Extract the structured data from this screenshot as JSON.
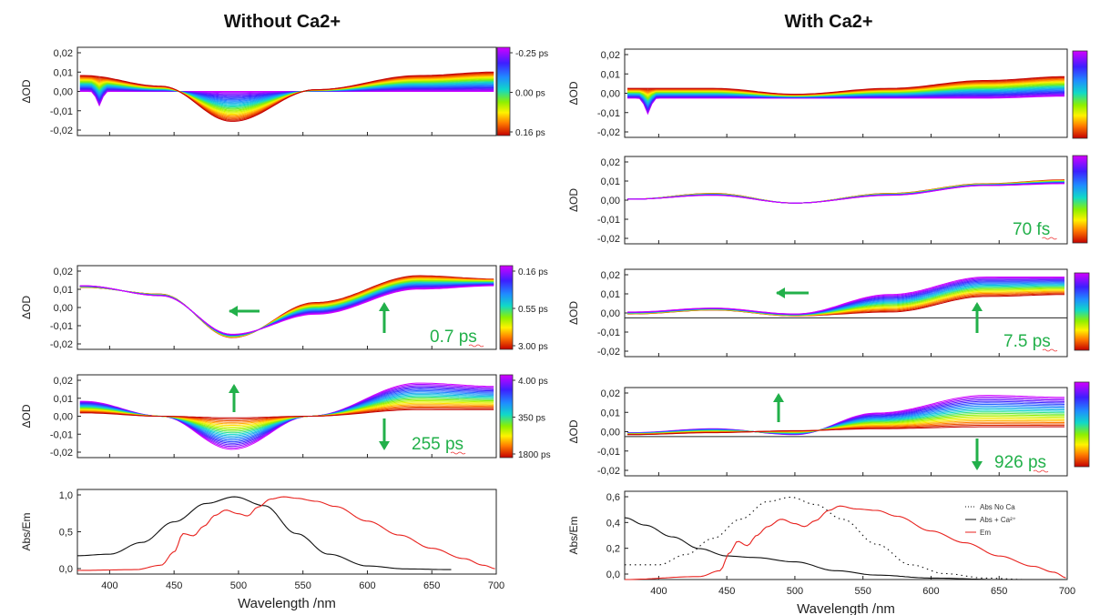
{
  "titles": {
    "left": "Without Ca2+",
    "right": "With Ca2+"
  },
  "colors": {
    "annotation": "#22b04a",
    "abs": "#111111",
    "em": "#e8221e",
    "axis": "#222222"
  },
  "chart_data": [
    {
      "id": "L1",
      "type": "line",
      "col": "left",
      "ylabel": "ΔOD",
      "yticks": [
        "0,02",
        "0,01",
        "0,00",
        "-0,01",
        "-0,02"
      ],
      "ylim": [
        -0.025,
        0.025
      ],
      "xlim": [
        375,
        700
      ],
      "colorbar": {
        "labels": [
          "-0.25 ps",
          "0.00 ps",
          "0.16 ps"
        ]
      },
      "annotation": "",
      "arrows": [],
      "series_summary": {
        "count": 30,
        "x": [
          380,
          440,
          495,
          560,
          640,
          700
        ],
        "y_first": [
          0.0,
          0.0,
          0.0,
          0.0,
          0.0,
          0.0
        ],
        "y_last": [
          0.009,
          0.003,
          -0.017,
          0.001,
          0.009,
          0.011
        ]
      }
    },
    {
      "id": "L2",
      "type": "line",
      "col": "left",
      "ylabel": "ΔOD",
      "yticks": [
        "0,02",
        "0,01",
        "0,00",
        "-0,01",
        "-0,02"
      ],
      "ylim": [
        -0.025,
        0.025
      ],
      "xlim": [
        375,
        700
      ],
      "colorbar": {
        "labels": [
          "0.16 ps",
          "0.55 ps",
          "3.00 ps"
        ]
      },
      "annotation": "0.7 ps",
      "arrows": [
        "left",
        "up"
      ],
      "series_summary": {
        "count": 22,
        "x": [
          380,
          440,
          495,
          560,
          640,
          700
        ],
        "y_first": [
          0.012,
          0.008,
          -0.018,
          0.003,
          0.019,
          0.017
        ],
        "y_last": [
          0.013,
          0.007,
          -0.016,
          -0.004,
          0.011,
          0.013
        ]
      }
    },
    {
      "id": "L3",
      "type": "line",
      "col": "left",
      "ylabel": "ΔOD",
      "yticks": [
        "0,02",
        "0,01",
        "0,00",
        "-0,01",
        "-0,02"
      ],
      "ylim": [
        -0.025,
        0.025
      ],
      "xlim": [
        375,
        700
      ],
      "colorbar": {
        "labels": [
          "4.00 ps",
          "350 ps",
          "1800 ps"
        ]
      },
      "annotation": "255 ps",
      "arrows": [
        "up",
        "down"
      ],
      "series_summary": {
        "count": 22,
        "x": [
          380,
          440,
          495,
          555,
          640,
          700
        ],
        "y_first": [
          0.009,
          0.0,
          -0.02,
          0.0,
          0.02,
          0.018
        ],
        "y_last": [
          0.002,
          0.0,
          -0.001,
          0.0,
          0.004,
          0.004
        ]
      }
    },
    {
      "id": "L4",
      "type": "line",
      "col": "left",
      "ylabel": "Abs/Em",
      "xlabel": "Wavelength  /nm",
      "yticks": [
        "1,0",
        "0,5",
        "0,0"
      ],
      "ylim": [
        -0.05,
        1.1
      ],
      "xlim": [
        375,
        700
      ],
      "xticks": [
        "400",
        "450",
        "500",
        "550",
        "600",
        "650",
        "700"
      ],
      "series": [
        {
          "kind": "abs",
          "x": [
            375,
            400,
            425,
            450,
            475,
            497,
            520,
            545,
            570,
            600,
            630,
            665
          ],
          "y": [
            0.2,
            0.22,
            0.38,
            0.66,
            0.91,
            1.0,
            0.88,
            0.5,
            0.22,
            0.06,
            0.02,
            0.01
          ]
        },
        {
          "kind": "em",
          "x": [
            375,
            420,
            440,
            450,
            457,
            465,
            473,
            482,
            490,
            500,
            507,
            515,
            525,
            535,
            545,
            560,
            575,
            600,
            625,
            650,
            675,
            690,
            700
          ],
          "y": [
            0.0,
            0.01,
            0.07,
            0.25,
            0.5,
            0.47,
            0.6,
            0.75,
            0.82,
            0.77,
            0.74,
            0.86,
            0.97,
            1.0,
            0.98,
            0.94,
            0.87,
            0.67,
            0.48,
            0.3,
            0.16,
            0.07,
            0.02
          ]
        }
      ]
    },
    {
      "id": "R1",
      "type": "line",
      "col": "right",
      "ylabel": "ΔOD",
      "yticks": [
        "0,02",
        "0,01",
        "0,00",
        "-0,01",
        "-0,02"
      ],
      "ylim": [
        -0.02,
        0.025
      ],
      "xlim": [
        375,
        700
      ],
      "colorbar": {
        "labels": []
      },
      "annotation": "",
      "arrows": [],
      "series_summary": {
        "count": 28,
        "x": [
          380,
          440,
          500,
          570,
          640,
          700
        ],
        "y_first": [
          0.0,
          0.0,
          0.0,
          0.0,
          0.0,
          0.001
        ],
        "y_last": [
          0.005,
          0.005,
          0.002,
          0.005,
          0.009,
          0.011
        ]
      }
    },
    {
      "id": "R2",
      "type": "line",
      "col": "right",
      "ylabel": "ΔOD",
      "yticks": [
        "0,02",
        "0,01",
        "0,00",
        "-0,01",
        "-0,02"
      ],
      "ylim": [
        -0.02,
        0.025
      ],
      "xlim": [
        375,
        700
      ],
      "colorbar": {
        "labels": []
      },
      "annotation": "70 fs",
      "arrows": [],
      "series_summary": {
        "count": 16,
        "x": [
          380,
          440,
          500,
          570,
          640,
          700
        ],
        "y_first": [
          0.003,
          0.006,
          0.001,
          0.006,
          0.011,
          0.013
        ],
        "y_last": [
          0.003,
          0.005,
          0.001,
          0.005,
          0.01,
          0.011
        ]
      }
    },
    {
      "id": "R3",
      "type": "line",
      "col": "right",
      "ylabel": "ΔOD",
      "yticks": [
        "0,02",
        "0,01",
        "0,00",
        "-0,01",
        "-0,02"
      ],
      "ylim": [
        -0.02,
        0.025
      ],
      "xlim": [
        375,
        700
      ],
      "colorbar": {
        "labels": []
      },
      "annotation": "7.5 ps",
      "arrows": [
        "left",
        "up"
      ],
      "series_summary": {
        "count": 20,
        "x": [
          380,
          440,
          500,
          570,
          640,
          700
        ],
        "y_first": [
          0.002,
          0.004,
          0.001,
          0.003,
          0.011,
          0.012
        ],
        "y_last": [
          0.003,
          0.005,
          0.002,
          0.012,
          0.021,
          0.021
        ]
      }
    },
    {
      "id": "R4",
      "type": "line",
      "col": "right",
      "ylabel": "ΔOD",
      "yticks": [
        "0,02",
        "0,01",
        "0,00",
        "-0,01",
        "-0,02"
      ],
      "ylim": [
        -0.02,
        0.025
      ],
      "xlim": [
        375,
        700
      ],
      "colorbar": {
        "labels": []
      },
      "annotation": "926 ps",
      "arrows": [
        "up",
        "down"
      ],
      "series_summary": {
        "count": 22,
        "x": [
          380,
          440,
          500,
          560,
          640,
          700
        ],
        "y_first": [
          0.002,
          0.004,
          0.001,
          0.012,
          0.021,
          0.02
        ],
        "y_last": [
          0.001,
          0.002,
          0.003,
          0.004,
          0.005,
          0.005
        ]
      }
    },
    {
      "id": "R5",
      "type": "line",
      "col": "right",
      "ylabel": "Abs/Em",
      "xlabel": "Wavelength  /nm",
      "yticks": [
        "0,6",
        "0,4",
        "0,2",
        "0,0"
      ],
      "ylim": [
        0,
        0.6
      ],
      "xlim": [
        375,
        700
      ],
      "xticks": [
        "400",
        "450",
        "500",
        "550",
        "600",
        "650",
        "700"
      ],
      "legend": [
        {
          "label": "Abs No Ca",
          "style": "dotted"
        },
        {
          "label": "Abs + Ca²⁺",
          "style": "solid"
        },
        {
          "label": "Em",
          "style": "red"
        }
      ],
      "series": [
        {
          "kind": "absnoca",
          "x": [
            375,
            400,
            420,
            440,
            460,
            480,
            497,
            515,
            535,
            560,
            585,
            610,
            640,
            670,
            700
          ],
          "y": [
            0.1,
            0.1,
            0.17,
            0.28,
            0.41,
            0.53,
            0.56,
            0.51,
            0.41,
            0.24,
            0.1,
            0.04,
            0.01,
            0.0,
            0.0
          ]
        },
        {
          "kind": "abs",
          "x": [
            375,
            390,
            410,
            430,
            450,
            470,
            500,
            530,
            560,
            600,
            650,
            700
          ],
          "y": [
            0.42,
            0.37,
            0.29,
            0.21,
            0.16,
            0.15,
            0.12,
            0.06,
            0.03,
            0.01,
            0.0,
            0.0
          ]
        },
        {
          "kind": "em",
          "x": [
            375,
            430,
            445,
            452,
            458,
            465,
            472,
            480,
            490,
            500,
            507,
            515,
            525,
            533,
            545,
            560,
            575,
            600,
            625,
            650,
            675,
            690,
            700
          ],
          "y": [
            0.0,
            0.02,
            0.06,
            0.18,
            0.26,
            0.23,
            0.3,
            0.36,
            0.41,
            0.38,
            0.36,
            0.4,
            0.47,
            0.5,
            0.48,
            0.47,
            0.43,
            0.33,
            0.25,
            0.16,
            0.09,
            0.05,
            0.01
          ]
        }
      ]
    }
  ]
}
